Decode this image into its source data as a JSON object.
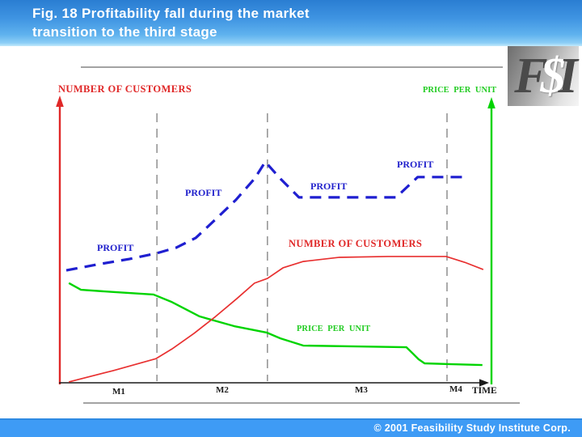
{
  "header": {
    "title_line1": "Fig. 18  Profitability fall during the market",
    "title_line2": "transition to the third stage"
  },
  "logo": {
    "f": "F",
    "dollar": "$",
    "i": "I"
  },
  "chart": {
    "left_axis_label": "NUMBER OF CUSTOMERS",
    "right_axis_label": "PRICE PER UNIT",
    "profit_labels": [
      "PROFIT",
      "PROFIT",
      "PROFIT",
      "PROFIT"
    ],
    "customers_series_label": "NUMBER OF CUSTOMERS",
    "price_series_label": "PRICE PER UNIT",
    "x_ticks": [
      "M1",
      "M2",
      "M3",
      "M4"
    ],
    "time_label": "TIME"
  },
  "chart_data": {
    "type": "line",
    "title": "Profitability fall during the market transition to the third stage",
    "xlabel": "TIME",
    "x_axis": {
      "ticks": [
        "M1",
        "M2",
        "M3",
        "M4"
      ],
      "numeric": false,
      "note": "market stages, no numeric scale shown"
    },
    "y_axes": {
      "left": "NUMBER OF CUSTOMERS",
      "right": "PRICE PER UNIT"
    },
    "values_note": "conceptual chart; x and y are relative 0-100 estimates read from the figure",
    "xlim": [
      0,
      100
    ],
    "ylim": [
      0,
      100
    ],
    "grid": false,
    "stage_boundaries_x": [
      22.5,
      48.1,
      89.7
    ],
    "series": [
      {
        "name": "PRICE PER UNIT",
        "color": "#00d400",
        "style": "solid",
        "width": 2.4,
        "points": [
          [
            2.1,
            35.9
          ],
          [
            4.9,
            33.5
          ],
          [
            12.4,
            32.7
          ],
          [
            21.7,
            31.8
          ],
          [
            25.8,
            29.2
          ],
          [
            32.4,
            23.9
          ],
          [
            40.4,
            20.4
          ],
          [
            47.9,
            18.1
          ],
          [
            51.1,
            16.0
          ],
          [
            56.4,
            13.4
          ],
          [
            68.5,
            13.1
          ],
          [
            80.3,
            12.8
          ],
          [
            83.1,
            8.5
          ],
          [
            84.5,
            7.0
          ],
          [
            91.0,
            6.7
          ],
          [
            97.9,
            6.4
          ]
        ]
      },
      {
        "name": "NUMBER OF CUSTOMERS",
        "color": "#e83030",
        "style": "solid",
        "width": 1.7,
        "points": [
          [
            2.1,
            0.3
          ],
          [
            12.4,
            4.4
          ],
          [
            22.3,
            8.7
          ],
          [
            26.0,
            12.2
          ],
          [
            31.1,
            17.8
          ],
          [
            36.1,
            23.9
          ],
          [
            41.0,
            30.3
          ],
          [
            45.1,
            35.9
          ],
          [
            48.1,
            37.6
          ],
          [
            51.7,
            41.4
          ],
          [
            56.4,
            43.7
          ],
          [
            64.8,
            45.2
          ],
          [
            76.0,
            45.5
          ],
          [
            89.5,
            45.5
          ],
          [
            93.8,
            43.4
          ],
          [
            98.1,
            40.8
          ]
        ]
      },
      {
        "name": "PROFIT",
        "color": "#1f1fd0",
        "style": "dashed",
        "width": 3.2,
        "points": [
          [
            1.5,
            40.5
          ],
          [
            8.6,
            42.6
          ],
          [
            16.1,
            44.6
          ],
          [
            22.3,
            46.6
          ],
          [
            27.0,
            48.7
          ],
          [
            31.5,
            52.2
          ],
          [
            36.1,
            58.9
          ],
          [
            40.8,
            65.9
          ],
          [
            45.1,
            73.5
          ],
          [
            47.6,
            79.6
          ],
          [
            51.3,
            73.2
          ],
          [
            55.4,
            66.8
          ],
          [
            77.9,
            66.8
          ],
          [
            80.3,
            70.3
          ],
          [
            82.9,
            74.1
          ],
          [
            93.8,
            74.1
          ]
        ]
      }
    ]
  },
  "footer": {
    "copyright": "© 2001 Feasibility Study Institute Corp."
  }
}
